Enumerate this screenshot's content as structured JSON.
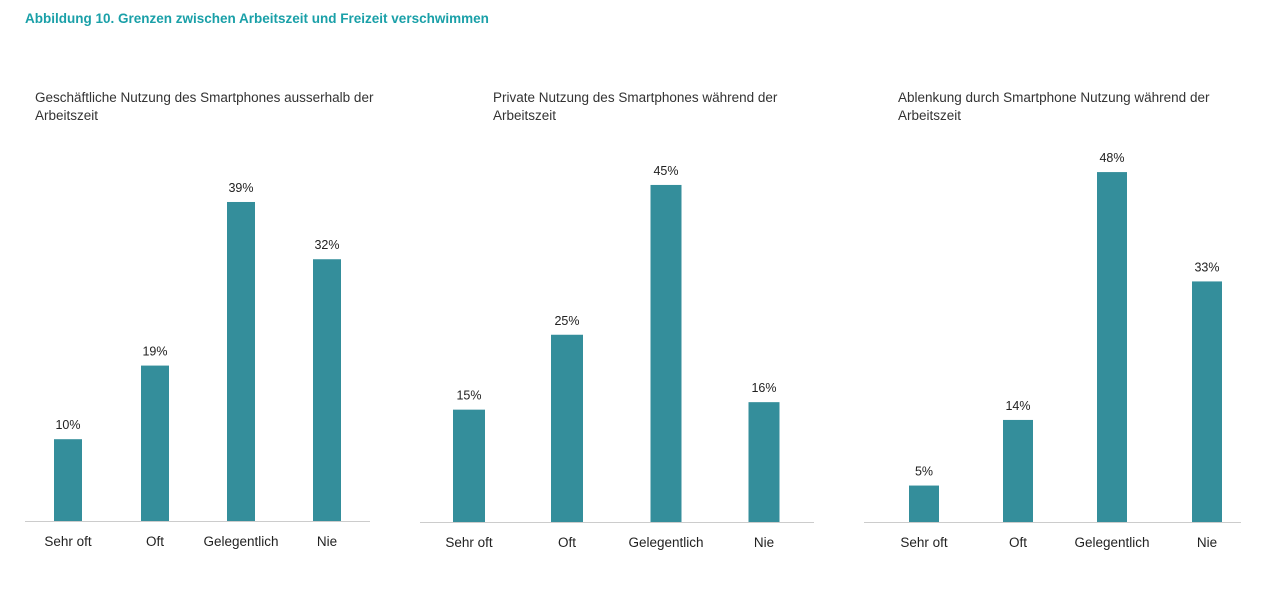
{
  "figure_title": "Abbildung 10. Grenzen zwischen Arbeitszeit und Freizeit verschwimmen",
  "colors": {
    "bar": "#348e9b",
    "title": "#1aa0a8",
    "axis": "#cccccc"
  },
  "chart_data": [
    {
      "type": "bar",
      "title": "Geschäftliche Nutzung des Smartphones ausserhalb der Arbeitszeit",
      "categories": [
        "Sehr oft",
        "Oft",
        "Gelegentlich",
        "Nie"
      ],
      "values": [
        10,
        19,
        39,
        32
      ],
      "value_labels": [
        "10%",
        "19%",
        "39%",
        "32%"
      ],
      "unit": "%",
      "xlabel": "",
      "ylabel": "",
      "ylim": [
        0,
        50
      ],
      "grid": false,
      "legend": "none"
    },
    {
      "type": "bar",
      "title": "Private Nutzung des Smartphones während der Arbeitszeit",
      "categories": [
        "Sehr oft",
        "Oft",
        "Gelegentlich",
        "Nie"
      ],
      "values": [
        15,
        25,
        45,
        16
      ],
      "value_labels": [
        "15%",
        "25%",
        "45%",
        "16%"
      ],
      "unit": "%",
      "xlabel": "",
      "ylabel": "",
      "ylim": [
        0,
        50
      ],
      "grid": false,
      "legend": "none"
    },
    {
      "type": "bar",
      "title": "Ablenkung durch Smartphone Nutzung während der Arbeitszeit",
      "categories": [
        "Sehr oft",
        "Oft",
        "Gelegentlich",
        "Nie"
      ],
      "values": [
        5,
        14,
        48,
        33
      ],
      "value_labels": [
        "5%",
        "14%",
        "48%",
        "33%"
      ],
      "unit": "%",
      "xlabel": "",
      "ylabel": "",
      "ylim": [
        0,
        50
      ],
      "grid": false,
      "legend": "none"
    }
  ]
}
